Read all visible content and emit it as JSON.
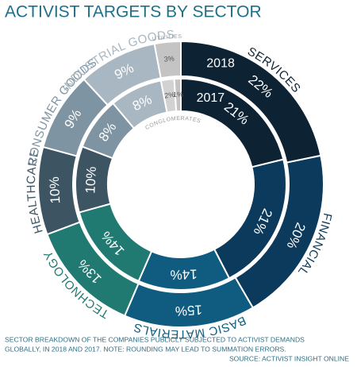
{
  "chart_data": {
    "type": "donut",
    "title": "ACTIVIST TARGETS BY SECTOR",
    "categories": [
      "SERVICES",
      "FINANCIAL",
      "BASIC MATERIALS",
      "TECHNOLOGY",
      "HEALTHCARE",
      "CONSUMER GOODS",
      "INDUSTRIAL GOODS",
      "CONGLOMERATES",
      "UTILITIES"
    ],
    "colors": [
      "#0d2233",
      "#0b3a5c",
      "#0f5c80",
      "#207a72",
      "#3d5563",
      "#7f94a2",
      "#a8b7c2",
      "#d2d2d2",
      "#c4c4c4"
    ],
    "series": [
      {
        "name": "2018",
        "values": [
          22,
          20,
          15,
          13,
          10,
          9,
          9,
          null,
          3
        ],
        "value_labels": [
          "22%",
          "20%",
          "15%",
          "13%",
          "10%",
          "9%",
          "9%",
          null,
          "3%"
        ]
      },
      {
        "name": "2017",
        "values": [
          21,
          21,
          14,
          14,
          10,
          8,
          8,
          2,
          1
        ],
        "value_labels": [
          "21%",
          "21%",
          "14%",
          "14%",
          "10%",
          "8%",
          "8%",
          "2%",
          "1%"
        ]
      }
    ],
    "caption": [
      "SECTOR BREAKDOWN OF THE COMPANIES PUBLICLY SUBJECTED TO ACTIVIST DEMANDS",
      "GLOBALLY, IN 2018 AND 2017. NOTE: ROUNDING MAY LEAD TO SUMMATION ERRORS."
    ],
    "source": "SOURCE: ACTIVIST INSIGHT ONLINE"
  }
}
